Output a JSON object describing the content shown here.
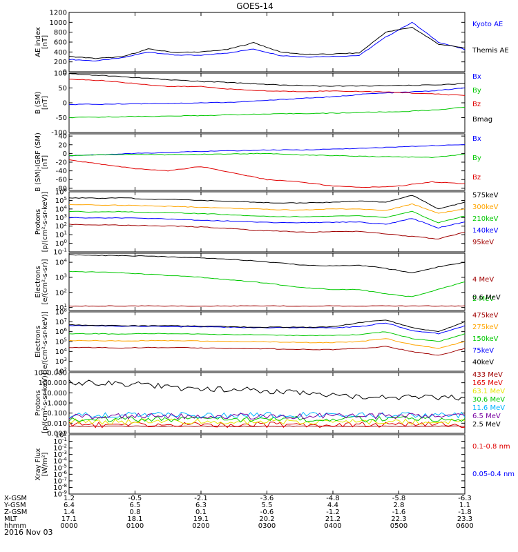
{
  "title": "GOES-14",
  "date_label": "2016 Nov 03",
  "colors": {
    "black": "#000000",
    "blue": "#0000ff",
    "green": "#00c800",
    "red": "#e00000",
    "orange": "#ffa500",
    "darkred": "#a00000",
    "yellow": "#e6e600",
    "cyan": "#00b4ff",
    "purple": "#7800a0",
    "lightblue": "#3c8cff"
  },
  "ephemeris": {
    "rows": [
      {
        "label": "X-GSM",
        "values": [
          "1.2",
          "-0.5",
          "-2.1",
          "-3.6",
          "-4.8",
          "-5.8",
          "-6.3"
        ]
      },
      {
        "label": "Y-GSM",
        "values": [
          "6.4",
          "6.5",
          "6.3",
          "5.5",
          "4.4",
          "2.8",
          "1.1"
        ]
      },
      {
        "label": "Z-GSM",
        "values": [
          "1.4",
          "0.8",
          "0.1",
          "-0.6",
          "-1.2",
          "-1.6",
          "-1.8"
        ]
      },
      {
        "label": "MLT",
        "values": [
          "17.1",
          "18.1",
          "19.1",
          "20.2",
          "21.2",
          "22.3",
          "23.3"
        ]
      },
      {
        "label": "hhmm",
        "values": [
          "0000",
          "0100",
          "0200",
          "0300",
          "0400",
          "0500",
          "0600"
        ]
      }
    ]
  },
  "chart_data": [
    {
      "type": "line",
      "ylabel": "AE index\n[nT]",
      "ylim": [
        0,
        1200
      ],
      "yscale": "linear",
      "yticks": [
        "0",
        "200",
        "400",
        "600",
        "800",
        "1000",
        "1200"
      ],
      "x": [
        "0000",
        "0030",
        "0100",
        "0130",
        "0200",
        "0230",
        "0300",
        "0330",
        "0400",
        "0430",
        "0500",
        "0530",
        "0545",
        "0550",
        "0555",
        "0600"
      ],
      "series": [
        {
          "name": "Kyoto AE",
          "color": "#0000ff",
          "values": [
            250,
            220,
            280,
            400,
            340,
            330,
            380,
            460,
            330,
            300,
            310,
            330,
            700,
            1000,
            600,
            450
          ]
        },
        {
          "name": "Themis AE",
          "color": "#000000",
          "values": [
            310,
            270,
            300,
            460,
            390,
            400,
            450,
            590,
            400,
            350,
            360,
            380,
            800,
            900,
            560,
            480
          ]
        }
      ]
    },
    {
      "type": "line",
      "ylabel": "B (SM)\n[nT]",
      "ylim": [
        -100,
        100
      ],
      "yscale": "linear",
      "yticks": [
        "-100",
        "-50",
        "0",
        "50",
        "100"
      ],
      "x": [
        "0000",
        "0030",
        "0100",
        "0130",
        "0200",
        "0230",
        "0300",
        "0330",
        "0400",
        "0430",
        "0500",
        "0530",
        "0600"
      ],
      "series": [
        {
          "name": "Bx",
          "color": "#0000ff",
          "values": [
            -5,
            -5,
            -3,
            -2,
            0,
            2,
            8,
            15,
            20,
            30,
            35,
            40,
            50
          ]
        },
        {
          "name": "By",
          "color": "#00c800",
          "values": [
            -50,
            -48,
            -46,
            -45,
            -43,
            -40,
            -38,
            -36,
            -35,
            -32,
            -30,
            -25,
            -15
          ]
        },
        {
          "name": "Bz",
          "color": "#e00000",
          "values": [
            80,
            75,
            65,
            55,
            55,
            45,
            40,
            38,
            40,
            38,
            35,
            30,
            25
          ]
        },
        {
          "name": "Bmag",
          "color": "#000000",
          "values": [
            98,
            92,
            85,
            78,
            72,
            68,
            62,
            58,
            56,
            57,
            58,
            60,
            65
          ]
        }
      ]
    },
    {
      "type": "line",
      "ylabel": "B (SM)-IGRF (SM)\n[nT]",
      "ylim": [
        -85,
        45
      ],
      "yscale": "linear",
      "yticks": [
        "-80",
        "-60",
        "-40",
        "-20",
        "0",
        "20",
        "40"
      ],
      "x": [
        "0000",
        "0030",
        "0100",
        "0130",
        "0200",
        "0230",
        "0300",
        "0330",
        "0400",
        "0430",
        "0500",
        "0530",
        "0600"
      ],
      "series": [
        {
          "name": "Bx",
          "color": "#0000ff",
          "values": [
            -5,
            -3,
            0,
            2,
            5,
            6,
            8,
            8,
            10,
            12,
            15,
            18,
            20
          ]
        },
        {
          "name": "By",
          "color": "#00c800",
          "values": [
            -5,
            -3,
            -2,
            -3,
            -2,
            -1,
            0,
            -3,
            -5,
            -7,
            -8,
            -9,
            -2
          ]
        },
        {
          "name": "Bz",
          "color": "#e00000",
          "values": [
            -15,
            -25,
            -35,
            -40,
            -30,
            -45,
            -60,
            -65,
            -75,
            -78,
            -75,
            -65,
            -70
          ]
        }
      ]
    },
    {
      "type": "line",
      "ylabel": "Protons\n[p/(cm²-s-sr-keV)]",
      "ylim": [
        -1,
        6
      ],
      "yscale": "log",
      "yticks": [
        "10^-1",
        "10^0",
        "10^1",
        "10^2",
        "10^3",
        "10^4",
        "10^5",
        "10^6"
      ],
      "x": [
        "0000",
        "0030",
        "0100",
        "0130",
        "0200",
        "0230",
        "0300",
        "0330",
        "0400",
        "0430",
        "0500",
        "0530",
        "0545",
        "0550",
        "0555",
        "0600"
      ],
      "series": [
        {
          "name": "575keV",
          "color": "#000000",
          "values": [
            5.3,
            5.25,
            5.3,
            5.15,
            5.1,
            5.0,
            4.9,
            4.8,
            4.7,
            4.7,
            4.8,
            4.9,
            4.8,
            5.6,
            4.0,
            4.8
          ]
        },
        {
          "name": "300keV",
          "color": "#ffa500",
          "values": [
            4.5,
            4.45,
            4.45,
            4.35,
            4.3,
            4.2,
            4.1,
            4.0,
            3.9,
            3.9,
            4.0,
            4.0,
            3.8,
            4.6,
            3.5,
            4.0
          ]
        },
        {
          "name": "210keV",
          "color": "#00c800",
          "values": [
            3.7,
            3.65,
            3.7,
            3.6,
            3.55,
            3.45,
            3.35,
            3.2,
            3.1,
            3.1,
            3.15,
            3.2,
            3.0,
            3.7,
            2.4,
            3.2
          ]
        },
        {
          "name": "140keV",
          "color": "#0000ff",
          "values": [
            3.0,
            2.95,
            2.95,
            2.9,
            2.8,
            2.7,
            2.6,
            2.5,
            2.4,
            2.4,
            2.45,
            2.5,
            2.2,
            2.9,
            1.8,
            2.5
          ]
        },
        {
          "name": "95keV",
          "color": "#a00000",
          "values": [
            2.2,
            2.15,
            2.1,
            2.05,
            2.0,
            1.9,
            1.75,
            1.5,
            1.4,
            1.3,
            1.35,
            1.4,
            1.1,
            0.8,
            0.5,
            1.3
          ]
        }
      ]
    },
    {
      "type": "line",
      "ylabel": "Electrons\n[e/(cm²-s-sr)]",
      "ylim": [
        0.8,
        4.6
      ],
      "yscale": "log",
      "yticks": [
        "10^1",
        "10^2",
        "10^3",
        "10^4"
      ],
      "x": [
        "0000",
        "0030",
        "0100",
        "0130",
        "0200",
        "0230",
        "0300",
        "0330",
        "0400",
        "0430",
        "0500",
        "0530",
        "0545",
        "0550",
        "0555",
        "0600"
      ],
      "series": [
        {
          "name": "4 MeV",
          "color": "#a00000",
          "values": [
            1.1,
            1.1,
            1.1,
            1.1,
            1.1,
            1.1,
            1.1,
            1.1,
            1.1,
            1.1,
            1.1,
            1.1,
            1.1,
            1.1,
            1.1,
            1.1
          ]
        },
        {
          "name": "2 MeV",
          "color": "#00c800",
          "values": [
            3.4,
            3.35,
            3.3,
            3.2,
            3.1,
            3.0,
            2.85,
            2.7,
            2.5,
            2.3,
            2.2,
            2.2,
            1.9,
            1.7,
            2.2,
            2.7
          ]
        },
        {
          "name": "0.6 MeV",
          "color": "#000000",
          "values": [
            4.5,
            4.45,
            4.45,
            4.4,
            4.35,
            4.3,
            4.2,
            4.1,
            3.95,
            3.8,
            3.75,
            3.8,
            3.6,
            3.3,
            3.7,
            4.0
          ]
        }
      ]
    },
    {
      "type": "line",
      "ylabel": "Electrons\n[e/(cm²-s-sr-keV)]",
      "ylim": [
        2,
        8
      ],
      "yscale": "log",
      "yticks": [
        "10^2",
        "10^3",
        "10^4",
        "10^5",
        "10^6",
        "10^7",
        "10^8"
      ],
      "x": [
        "0000",
        "0030",
        "0100",
        "0130",
        "0200",
        "0230",
        "0300",
        "0330",
        "0400",
        "0430",
        "0500",
        "0530",
        "0545",
        "0550",
        "0555",
        "0600"
      ],
      "series": [
        {
          "name": "475keV",
          "color": "#a00000",
          "values": [
            4.4,
            4.4,
            4.35,
            4.4,
            4.4,
            4.35,
            4.3,
            4.3,
            4.25,
            4.2,
            4.2,
            4.3,
            4.5,
            4.0,
            3.6,
            4.3
          ]
        },
        {
          "name": "275keV",
          "color": "#ffa500",
          "values": [
            5.1,
            5.1,
            5.05,
            5.1,
            5.1,
            5.05,
            5.0,
            5.0,
            4.95,
            4.9,
            4.9,
            5.0,
            5.3,
            4.7,
            4.3,
            5.0
          ]
        },
        {
          "name": "150keV",
          "color": "#00c800",
          "values": [
            5.8,
            5.8,
            5.75,
            5.8,
            5.8,
            5.75,
            5.7,
            5.7,
            5.65,
            5.6,
            5.6,
            5.7,
            6.0,
            5.3,
            5.0,
            5.8
          ]
        },
        {
          "name": "75keV",
          "color": "#0000ff",
          "values": [
            6.6,
            6.6,
            6.55,
            6.55,
            6.5,
            6.5,
            6.45,
            6.4,
            6.4,
            6.4,
            6.4,
            6.5,
            6.9,
            6.1,
            5.8,
            6.6
          ]
        },
        {
          "name": "40keV",
          "color": "#000000",
          "values": [
            6.7,
            6.65,
            6.6,
            6.6,
            6.6,
            6.55,
            6.5,
            6.45,
            6.45,
            6.45,
            6.5,
            6.9,
            7.2,
            6.4,
            6.0,
            7.0
          ]
        }
      ]
    },
    {
      "type": "line",
      "ylabel": "Protons\n[p/(cm²-s-sr-keV)]",
      "ylim": [
        -3,
        3
      ],
      "yscale": "log",
      "yticks": [
        "0.001",
        "0.010",
        "0.100",
        "1.000",
        "10.000",
        "100.000",
        "1000.000"
      ],
      "x": [
        "0000",
        "0030",
        "0100",
        "0130",
        "0200",
        "0230",
        "0300",
        "0330",
        "0400",
        "0430",
        "0500",
        "0530",
        "0600"
      ],
      "series": [
        {
          "name": "433 MeV",
          "color": "#a00000",
          "values": [
            -2.3,
            -2.3,
            -2.3,
            -2.3,
            -2.3,
            -2.3,
            -2.3,
            -2.3,
            -2.3,
            -2.3,
            -2.3,
            -2.3,
            -2.3
          ]
        },
        {
          "name": "165 MeV",
          "color": "#e00000",
          "values": [
            -2.15,
            -2.15,
            -2.15,
            -2.15,
            -2.15,
            -2.15,
            -2.15,
            -2.15,
            -2.15,
            -2.15,
            -2.15,
            -2.15,
            -2.15
          ]
        },
        {
          "name": "63.1 MeV",
          "color": "#e6e600",
          "values": [
            -1.85,
            -1.85,
            -1.85,
            -1.85,
            -1.85,
            -1.85,
            -1.85,
            -1.85,
            -1.85,
            -1.85,
            -1.85,
            -1.85,
            -1.85
          ]
        },
        {
          "name": "30.6 MeV",
          "color": "#00c800",
          "values": [
            -1.6,
            -1.6,
            -1.6,
            -1.6,
            -1.6,
            -1.6,
            -1.6,
            -1.6,
            -1.6,
            -1.6,
            -1.6,
            -1.6,
            -1.6
          ]
        },
        {
          "name": "11.6 MeV",
          "color": "#00b4ff",
          "values": [
            -1.2,
            -1.2,
            -1.2,
            -1.2,
            -1.2,
            -1.2,
            -1.2,
            -1.2,
            -1.2,
            -1.2,
            -1.2,
            -1.2,
            -1.2
          ]
        },
        {
          "name": "6.5 MeV",
          "color": "#7800a0",
          "values": [
            -1.3,
            -1.3,
            -1.3,
            -1.3,
            -1.3,
            -1.3,
            -1.3,
            -1.3,
            -1.3,
            -1.3,
            -1.3,
            -1.3,
            -1.3
          ]
        },
        {
          "name": "2.5 MeV",
          "color": "#000000",
          "values": [
            2.0,
            1.95,
            1.9,
            1.6,
            1.3,
            1.35,
            1.2,
            1.0,
            0.8,
            0.65,
            0.6,
            0.5,
            0.55
          ]
        }
      ]
    },
    {
      "type": "line",
      "ylabel": "Xray Flux\n[W/m²]",
      "ylim": [
        -9,
        0
      ],
      "yscale": "log",
      "yticks": [
        "10^-9",
        "10^-8",
        "10^-7",
        "10^-6",
        "10^-5",
        "10^-4",
        "10^-3",
        "10^-2",
        "10^-1",
        "10^0"
      ],
      "x": [],
      "series": [
        {
          "name": "0.1-0.8 nm",
          "color": "#e00000",
          "values": []
        },
        {
          "name": "0.05-0.4 nm",
          "color": "#0000ff",
          "values": []
        }
      ]
    }
  ]
}
